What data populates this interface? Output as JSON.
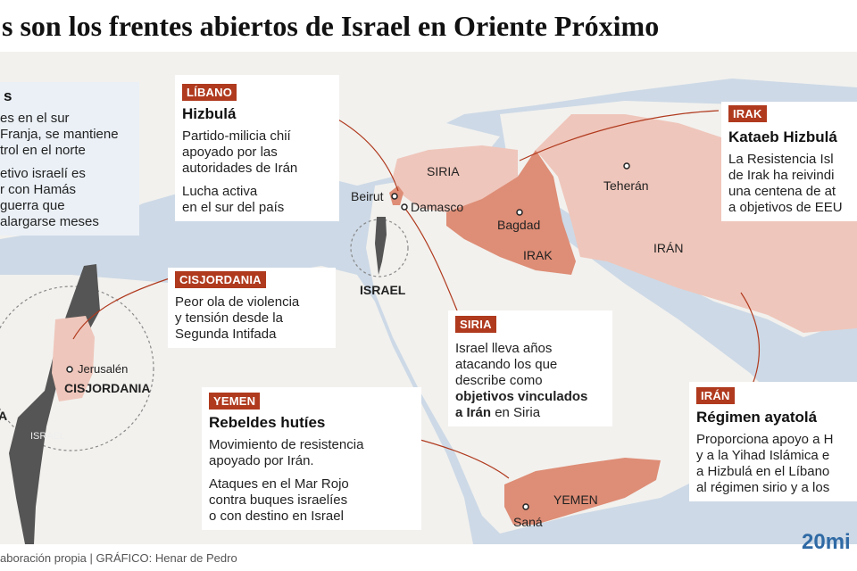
{
  "title": "s son los frentes abiertos de Israel en Oriente Próximo",
  "colors": {
    "sea": "#cdd9e6",
    "land": "#f2f1ee",
    "highlight": "#efc6bb",
    "highlight_dark": "#de8d76",
    "tag": "#b03a1e",
    "israel": "#555555"
  },
  "places": {
    "beirut": "Beirut",
    "damasco": "Damasco",
    "siria": "SIRIA",
    "bagdad": "Bagdad",
    "irak": "IRAK",
    "teheran": "Teherán",
    "iran": "IRÁN",
    "israel": "ISRAEL",
    "jerusalen": "Jerusalén",
    "cisjordania": "CISJORDANIA",
    "israel_small": "ISRAEL",
    "sana": "Saná",
    "yemen": "YEMEN",
    "left_edge": "A"
  },
  "cards": {
    "gaza": {
      "head": "s",
      "p1": "es en el sur\nFranja, se mantiene\ntrol en el norte",
      "p2": "etivo israelí es\nr con Hamás\nguerra que\n alargarse meses"
    },
    "libano": {
      "tag": "LÍBANO",
      "head": "Hizbulá",
      "p1": "Partido-milicia chií\napoyado por las\nautoridades de Irán",
      "p2": "Lucha activa\nen el sur del país"
    },
    "cisjordania": {
      "tag": "CISJORDANIA",
      "p1": "Peor ola de violencia\ny tensión desde la\nSegunda Intifada"
    },
    "irak": {
      "tag": "IRAK",
      "head": "Kataeb Hizbulá",
      "p1": "La Resistencia Isl\nde Irak ha reivindi\nuna centena de at\na objetivos de EEU"
    },
    "siria": {
      "tag": "SIRIA",
      "p1a": "Israel lleva años\natacando los que\ndescribe como\n",
      "p1b": "objetivos vinculados\na Irán",
      "p1c": " en Siria"
    },
    "yemen": {
      "tag": "YEMEN",
      "head": "Rebeldes hutíes",
      "p1": "Movimiento de resistencia\napoyado por Irán.",
      "p2": "Ataques en el Mar Rojo\ncontra buques israelíes\no con destino en Israel"
    },
    "iran": {
      "tag": "IRÁN",
      "head": "Régimen ayatolá",
      "p1": "Proporciona apoyo a H\ny a la Yihad Islámica e\na Hizbulá en el Líbano\nal régimen sirio y a los"
    }
  },
  "footer": {
    "source": "aboración propia  |  GRÁFICO: Henar de Pedro",
    "logo": "20mi"
  }
}
